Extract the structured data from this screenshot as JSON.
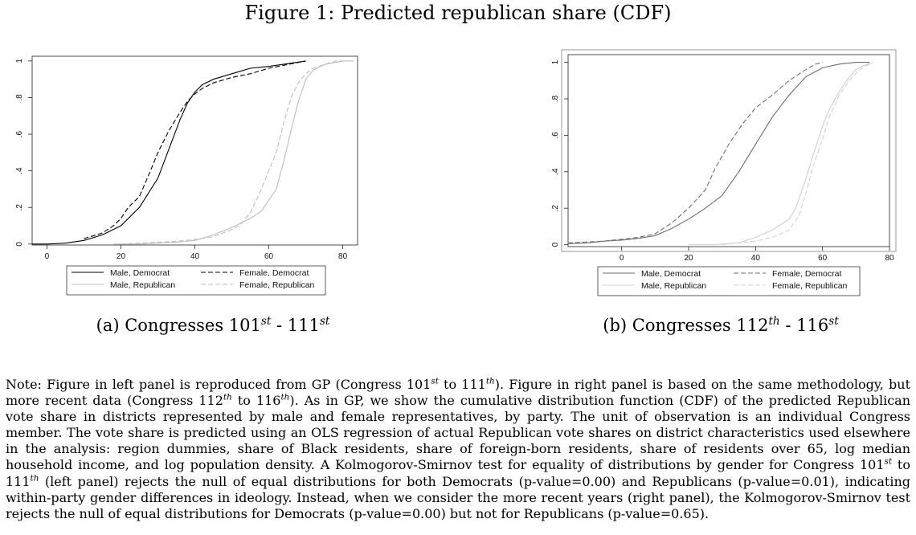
{
  "figure_title": "Figure 1: Predicted republican share (CDF)",
  "panels": [
    {
      "caption": {
        "prefix": "(a) Congresses 101",
        "sup1": "st",
        "mid": " - 111",
        "sup2": "st"
      },
      "legend": [
        "Male, Democrat",
        "Female, Democrat",
        "Male, Republican",
        "Female, Republican"
      ]
    },
    {
      "caption": {
        "prefix": "(b) Congresses 112",
        "sup1": "th",
        "mid": " - 116",
        "sup2": "st"
      },
      "legend": [
        "Male, Democrat",
        "Female, Democrat",
        "Male, Republican",
        "Female, Republican"
      ]
    }
  ],
  "note": {
    "p1": "Note: Figure in left panel is reproduced from GP (Congress 101",
    "s1": "st",
    "p2": " to 111",
    "s2": "th",
    "p3": "). Figure in right panel is based on the same methodology, but more recent data (Congress 112",
    "s3": "th",
    "p4": " to 116",
    "s4": "th",
    "p5": "). As in GP, we show the cumulative distribution function (CDF) of the predicted Republican vote share in districts represented by male and female representatives, by party. The unit of observation is an individual Congress member. The vote share is predicted using an OLS regression of actual Republican vote shares on district characteristics used elsewhere in the analysis: region dummies, share of Black residents, share of foreign-born residents, share of residents over 65, log median household income, and log population density. A Kolmogorov-Smirnov test for equality of distributions by gender for Congress 101",
    "s5": "st",
    "p6": " to 111",
    "s6": "th",
    "p7": " (left panel) rejects the null of equal distributions for both Democrats (p-value=0.00) and Republicans (p-value=0.01), indicating within-party gender differences in ideology. Instead, when we consider the more recent years (right panel), the Kolmogorov-Smirnov test rejects the null of equal distributions for Democrats (p-value=0.00) but not for Republicans (p-value=0.65)."
  },
  "chart_data": [
    {
      "type": "line",
      "title": "(a) Congresses 101st - 111st",
      "xlim": [
        -4,
        84
      ],
      "ylim": [
        0,
        1
      ],
      "xticks": [
        0,
        20,
        40,
        60,
        80
      ],
      "yticks": [
        0,
        0.2,
        0.4,
        0.6,
        0.8,
        1
      ],
      "xtick_labels": [
        "0",
        "20",
        "40",
        "60",
        "80"
      ],
      "ytick_labels": [
        "0",
        ".2",
        ".4",
        ".6",
        ".8",
        "1"
      ],
      "grid": false,
      "legend_position": "bottom",
      "series": [
        {
          "name": "Male, Democrat",
          "color": "#000000",
          "dash": "solid",
          "x": [
            -4,
            0,
            5,
            10,
            15,
            20,
            25,
            30,
            33,
            36,
            38,
            40,
            42,
            45,
            50,
            55,
            60,
            65,
            70
          ],
          "y": [
            0,
            0,
            0.005,
            0.02,
            0.05,
            0.1,
            0.2,
            0.36,
            0.52,
            0.68,
            0.77,
            0.83,
            0.87,
            0.9,
            0.93,
            0.96,
            0.97,
            0.985,
            1
          ]
        },
        {
          "name": "Female, Democrat",
          "color": "#000000",
          "dash": "dashed",
          "x": [
            10,
            15,
            18,
            20,
            22,
            25,
            28,
            30,
            33,
            36,
            38,
            40,
            42,
            45,
            50,
            55,
            60,
            65,
            70
          ],
          "y": [
            0.03,
            0.06,
            0.1,
            0.14,
            0.2,
            0.26,
            0.4,
            0.5,
            0.62,
            0.72,
            0.78,
            0.82,
            0.85,
            0.88,
            0.91,
            0.93,
            0.96,
            0.98,
            1
          ]
        },
        {
          "name": "Male, Republican",
          "color": "#bdbdbd",
          "dash": "solid",
          "x": [
            18,
            25,
            30,
            35,
            40,
            45,
            50,
            55,
            58,
            62,
            64,
            66,
            68,
            70,
            72,
            75,
            80,
            83
          ],
          "y": [
            0,
            0,
            0.005,
            0.01,
            0.02,
            0.05,
            0.09,
            0.14,
            0.18,
            0.3,
            0.45,
            0.62,
            0.78,
            0.9,
            0.95,
            0.98,
            1,
            1
          ]
        },
        {
          "name": "Female, Republican",
          "color": "#bdbdbd",
          "dash": "dashed",
          "x": [
            20,
            25,
            30,
            35,
            40,
            45,
            50,
            52,
            55,
            58,
            60,
            62,
            64,
            66,
            68,
            70,
            72,
            75,
            78,
            80
          ],
          "y": [
            0,
            0.005,
            0.01,
            0.015,
            0.025,
            0.04,
            0.08,
            0.1,
            0.17,
            0.3,
            0.4,
            0.5,
            0.66,
            0.8,
            0.88,
            0.93,
            0.96,
            0.98,
            1,
            1
          ]
        }
      ]
    },
    {
      "type": "line",
      "title": "(b) Congresses 112th - 116st",
      "xlim": [
        -16,
        80
      ],
      "ylim": [
        0,
        1
      ],
      "xticks": [
        0,
        20,
        40,
        60,
        80
      ],
      "yticks": [
        0,
        0.2,
        0.4,
        0.6,
        0.8,
        1
      ],
      "xtick_labels": [
        "0",
        "20",
        "40",
        "60",
        "80"
      ],
      "ytick_labels": [
        "0",
        ".2",
        ".4",
        ".6",
        ".8",
        "1"
      ],
      "grid": false,
      "legend_position": "bottom",
      "series": [
        {
          "name": "Male, Democrat",
          "color": "#6e6e6e",
          "dash": "solid",
          "x": [
            -16,
            -10,
            -5,
            0,
            5,
            10,
            15,
            20,
            25,
            30,
            35,
            40,
            45,
            50,
            55,
            60,
            65,
            70,
            74
          ],
          "y": [
            0.005,
            0.01,
            0.02,
            0.025,
            0.035,
            0.05,
            0.09,
            0.14,
            0.2,
            0.27,
            0.4,
            0.55,
            0.7,
            0.82,
            0.92,
            0.97,
            0.99,
            1,
            1
          ]
        },
        {
          "name": "Female, Democrat",
          "color": "#6e6e6e",
          "dash": "dashed",
          "x": [
            -16,
            -10,
            -5,
            0,
            5,
            10,
            15,
            20,
            25,
            28,
            32,
            36,
            40,
            45,
            50,
            55,
            58,
            60
          ],
          "y": [
            0.01,
            0.015,
            0.02,
            0.03,
            0.04,
            0.06,
            0.12,
            0.2,
            0.3,
            0.42,
            0.55,
            0.66,
            0.75,
            0.82,
            0.9,
            0.96,
            0.99,
            1
          ]
        },
        {
          "name": "Male, Republican",
          "color": "#d0d0d0",
          "dash": "solid",
          "x": [
            20,
            28,
            35,
            40,
            45,
            50,
            52,
            55,
            57,
            60,
            62,
            65,
            68,
            70,
            72,
            75
          ],
          "y": [
            0,
            0,
            0.01,
            0.04,
            0.08,
            0.14,
            0.2,
            0.36,
            0.48,
            0.65,
            0.74,
            0.84,
            0.92,
            0.96,
            0.98,
            1
          ]
        },
        {
          "name": "Female, Republican",
          "color": "#d0d0d0",
          "dash": "dashed",
          "x": [
            30,
            35,
            40,
            45,
            50,
            53,
            55,
            57,
            60,
            62,
            65,
            68,
            70,
            72,
            75
          ],
          "y": [
            0,
            0.01,
            0.02,
            0.04,
            0.08,
            0.16,
            0.28,
            0.42,
            0.58,
            0.7,
            0.82,
            0.9,
            0.94,
            0.97,
            1
          ]
        }
      ]
    }
  ]
}
